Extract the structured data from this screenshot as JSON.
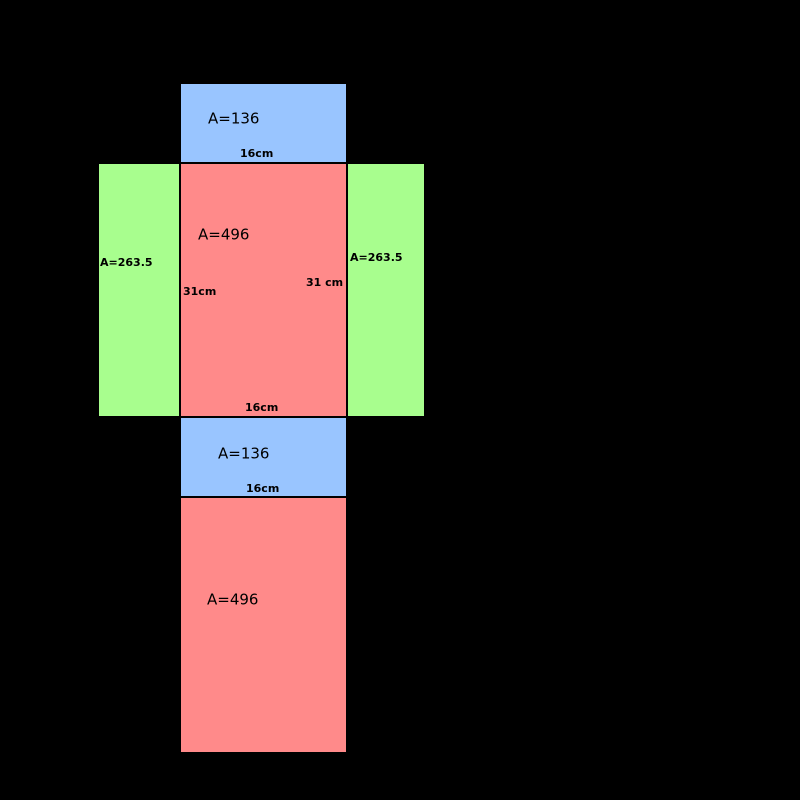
{
  "faces": [
    {
      "label": "A=136",
      "bottom_dimension": "16cm"
    },
    {
      "label": "A=496",
      "left_dimension": "31cm",
      "right_dimension": "31 cm",
      "bottom_dimension": "16cm"
    },
    {
      "label": "A=263.5"
    },
    {
      "label": "A=263.5"
    },
    {
      "label": "A=136",
      "bottom_dimension": "16cm"
    },
    {
      "label": "A=496"
    }
  ]
}
